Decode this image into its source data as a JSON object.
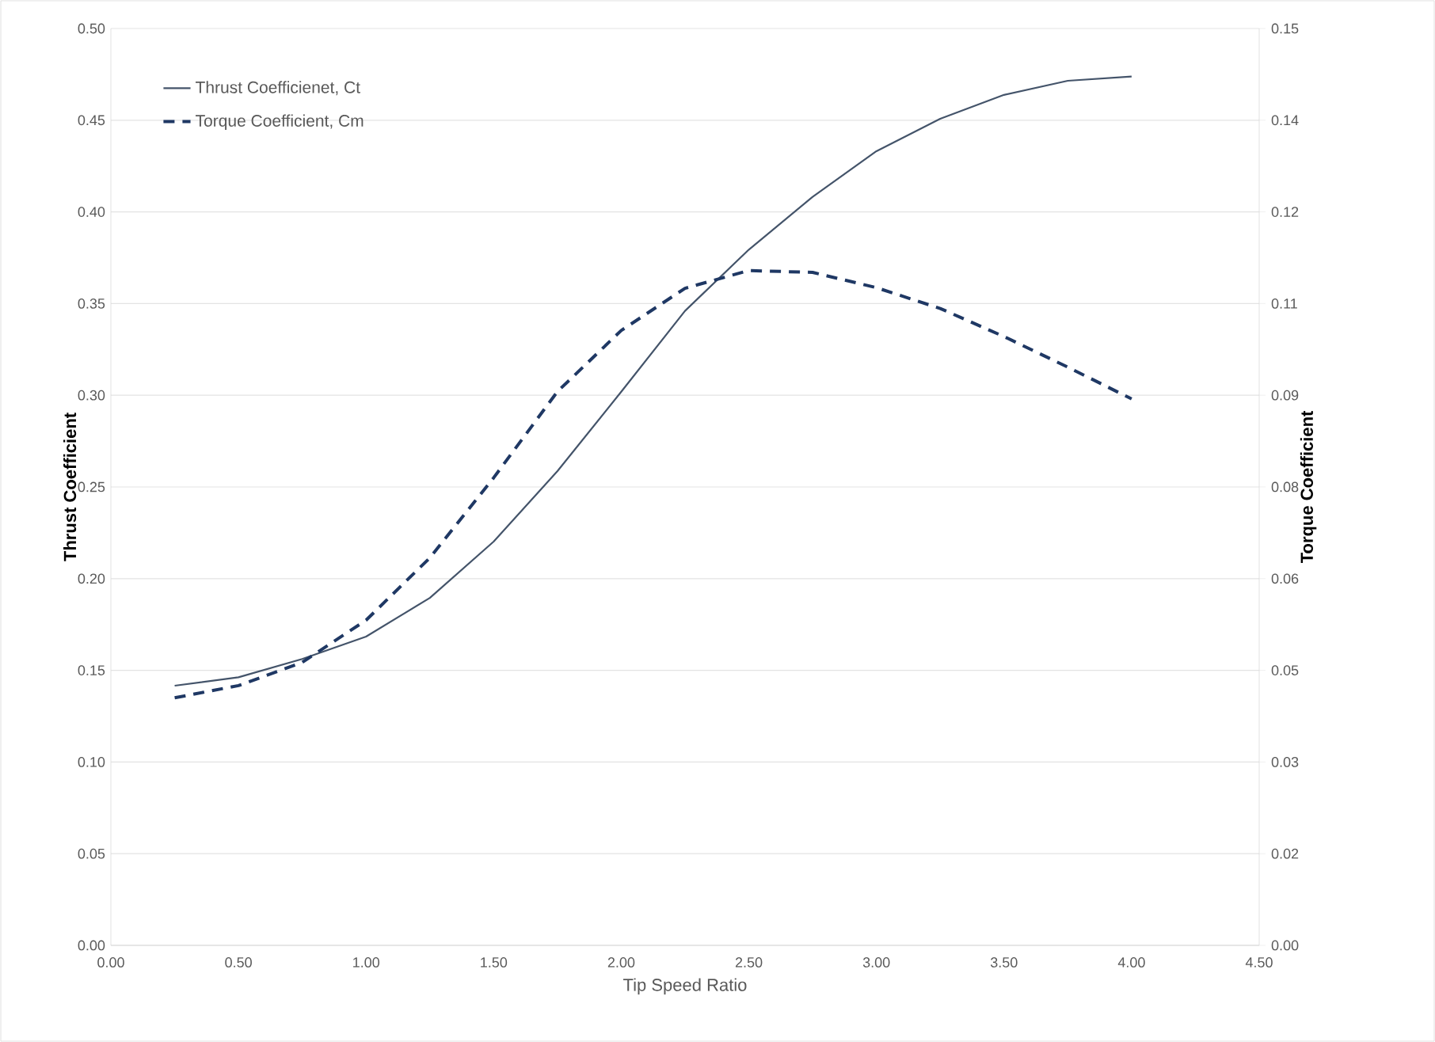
{
  "chart_data": {
    "type": "line",
    "xlabel": "Tip Speed Ratio",
    "ylabel": "Thrust Coefficient",
    "y2label": "Torque Coefficient",
    "x": [
      0.25,
      0.5,
      0.75,
      1.0,
      1.25,
      1.5,
      1.75,
      2.0,
      2.25,
      2.5,
      2.75,
      3.0,
      3.25,
      3.5,
      3.75,
      4.0
    ],
    "series": [
      {
        "name": "Thrust Coefficienet, Ct",
        "color": "#44546a",
        "line_style": "solid",
        "values": [
          0.1416,
          0.1462,
          0.1562,
          0.1684,
          0.1895,
          0.2202,
          0.2586,
          0.3019,
          0.346,
          0.3794,
          0.4082,
          0.4331,
          0.4508,
          0.4638,
          0.4715,
          0.4738
        ]
      },
      {
        "name": "Torque Coefficient, Cm",
        "color": "#1f3864",
        "line_style": "dashed",
        "axis": "y2",
        "values": [
          0.0405,
          0.0425,
          0.0463,
          0.0532,
          0.0634,
          0.0765,
          0.0906,
          0.1006,
          0.1075,
          0.1104,
          0.1101,
          0.1076,
          0.1042,
          0.0996,
          0.0946,
          0.0894
        ]
      }
    ],
    "xlim": [
      0,
      4.5
    ],
    "xticks": [
      {
        "value": 0,
        "label": "0.00"
      },
      {
        "value": 0.5,
        "label": "0.50"
      },
      {
        "value": 1,
        "label": "1.00"
      },
      {
        "value": 1.5,
        "label": "1.50"
      },
      {
        "value": 2,
        "label": "2.00"
      },
      {
        "value": 2.5,
        "label": "2.50"
      },
      {
        "value": 3,
        "label": "3.00"
      },
      {
        "value": 3.5,
        "label": "3.50"
      },
      {
        "value": 4,
        "label": "4.00"
      },
      {
        "value": 4.5,
        "label": "4.50"
      }
    ],
    "ylim": [
      0,
      0.5
    ],
    "yticks": [
      {
        "value": 0,
        "label": "0.00"
      },
      {
        "value": 0.05,
        "label": "0.05"
      },
      {
        "value": 0.1,
        "label": "0.10"
      },
      {
        "value": 0.15,
        "label": "0.15"
      },
      {
        "value": 0.2,
        "label": "0.20"
      },
      {
        "value": 0.25,
        "label": "0.25"
      },
      {
        "value": 0.3,
        "label": "0.30"
      },
      {
        "value": 0.35,
        "label": "0.35"
      },
      {
        "value": 0.4,
        "label": "0.40"
      },
      {
        "value": 0.45,
        "label": "0.45"
      },
      {
        "value": 0.5,
        "label": "0.50"
      }
    ],
    "y2lim": [
      0,
      0.15
    ],
    "y2ticks": [
      {
        "value": 0,
        "label": "0.00"
      },
      {
        "value": 0.015,
        "label": "0.02"
      },
      {
        "value": 0.03,
        "label": "0.03"
      },
      {
        "value": 0.045,
        "label": "0.05"
      },
      {
        "value": 0.06,
        "label": "0.06"
      },
      {
        "value": 0.075,
        "label": "0.08"
      },
      {
        "value": 0.09,
        "label": "0.09"
      },
      {
        "value": 0.105,
        "label": "0.11"
      },
      {
        "value": 0.12,
        "label": "0.12"
      },
      {
        "value": 0.135,
        "label": "0.14"
      },
      {
        "value": 0.15,
        "label": "0.15"
      }
    ],
    "grid": "y",
    "legend": "top left"
  }
}
